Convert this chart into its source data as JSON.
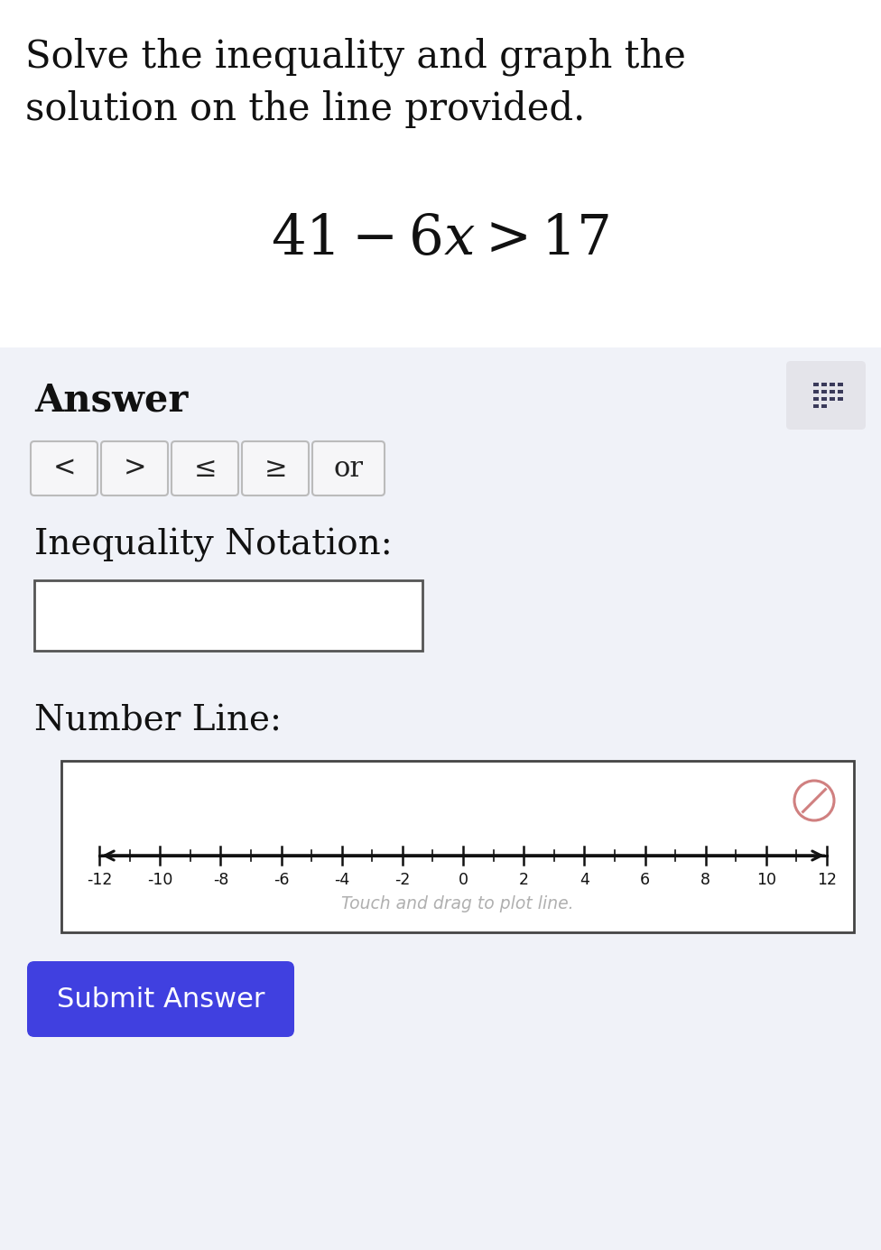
{
  "title_line1": "Solve the inequality and graph the",
  "title_line2": "solution on the line provided.",
  "answer_label": "Answer",
  "buttons": [
    "<",
    ">",
    "≤",
    "≥",
    "or"
  ],
  "inequality_notation_label": "Inequality Notation:",
  "number_line_label": "Number Line:",
  "touch_drag_text": "Touch and drag to plot line.",
  "submit_text": "Submit Answer",
  "bg_color": "#ffffff",
  "answer_bg_color": "#f0f2f8",
  "submit_btn_color": "#4040e0",
  "submit_text_color": "#ffffff",
  "number_line_ticks": [
    -12,
    -10,
    -8,
    -6,
    -4,
    -2,
    0,
    2,
    4,
    6,
    8,
    10,
    12
  ],
  "keyboard_icon_bg": "#e4e4ea",
  "cancel_icon_color": "#d08080",
  "title_fontsize": 30,
  "equation_fontsize": 44,
  "label_fontsize": 28,
  "btn_fontsize": 22
}
